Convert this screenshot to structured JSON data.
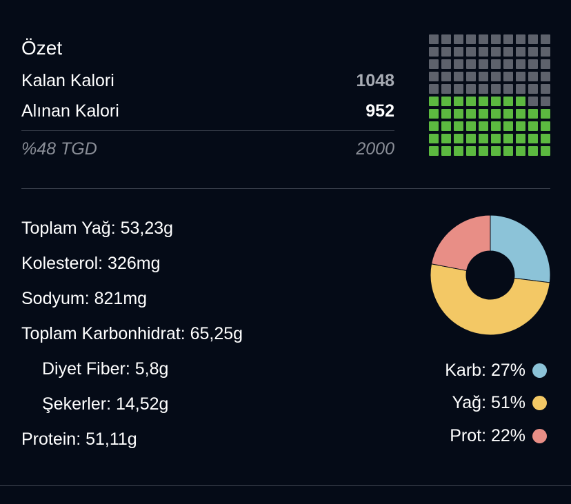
{
  "summary": {
    "title": "Özet",
    "remaining_label": "Kalan Kalori",
    "remaining_value": "1048",
    "consumed_label": "Alınan Kalori",
    "consumed_value": "952",
    "rdi_label": "%48 TGD",
    "rdi_value": "2000"
  },
  "waffle": {
    "total_cells": 100,
    "filled_cells": 48,
    "filled_color": "#5cb940",
    "empty_color": "#5e626c"
  },
  "nutrients": [
    {
      "label": "Toplam Yağ: 53,23g",
      "indent": false
    },
    {
      "label": "Kolesterol: 326mg",
      "indent": false
    },
    {
      "label": "Sodyum: 821mg",
      "indent": false
    },
    {
      "label": "Toplam Karbonhidrat: 65,25g",
      "indent": false
    },
    {
      "label": "Diyet Fiber: 5,8g",
      "indent": true
    },
    {
      "label": "Şekerler: 14,52g",
      "indent": true
    },
    {
      "label": "Protein: 51,11g",
      "indent": false
    }
  ],
  "chart_data": {
    "type": "pie",
    "categories": [
      "Karb",
      "Yağ",
      "Prot"
    ],
    "values": [
      27,
      51,
      22
    ],
    "colors": [
      "#8cc3d8",
      "#f3c865",
      "#e88e86"
    ],
    "legend": [
      "Karb: 27%",
      "Yağ: 51%",
      "Prot: 22%"
    ]
  }
}
